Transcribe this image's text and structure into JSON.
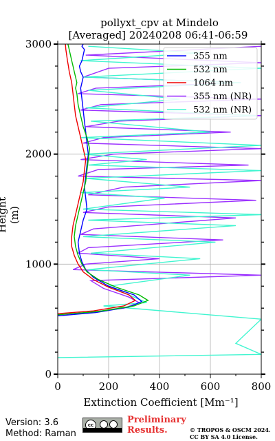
{
  "title_line1": "pollyxt_cpv at Mindelo",
  "title_line2": "[Averaged] 20240208 06:41-06:59",
  "version_text": "Version: 3.6",
  "method_text": "Method: Raman",
  "preliminary_line1": "Preliminary",
  "preliminary_line2": "Results.",
  "copyright_line1": "© TROPOS & OSCM 2024.",
  "copyright_line2": "CC BY SA 4.0 License.",
  "colors": {
    "355": "#0000ff",
    "532": "#00bb00",
    "1064": "#ee0000",
    "355nr": "#9b30ff",
    "532nr": "#40f5d0",
    "prelim": "#e63232"
  },
  "chart_data": {
    "type": "line",
    "xlabel": "Extinction Coefficient [Mm⁻¹]",
    "ylabel": "Height (m)",
    "xlim": [
      0,
      800
    ],
    "ylim": [
      0,
      3000
    ],
    "xticks": [
      "0",
      "200",
      "400",
      "600",
      "800"
    ],
    "yticks": [
      "0",
      "1000",
      "2000",
      "3000"
    ],
    "grid": true,
    "legend_position": "top-right",
    "series": [
      {
        "name": "355 nm",
        "color_key": "355",
        "x": [
          0,
          150,
          280,
          330,
          300,
          200,
          140,
          110,
          95,
          85,
          80,
          90,
          100,
          115,
          110,
          105,
          110,
          115,
          120,
          115,
          110,
          105,
          100,
          95,
          90,
          95,
          100,
          90,
          85,
          95,
          100,
          105,
          95,
          100
        ],
        "y": [
          530,
          560,
          610,
          660,
          720,
          800,
          880,
          950,
          1020,
          1100,
          1200,
          1300,
          1400,
          1500,
          1600,
          1700,
          1800,
          1900,
          2000,
          2100,
          2200,
          2300,
          2400,
          2500,
          2600,
          2650,
          2700,
          2750,
          2800,
          2850,
          2900,
          2950,
          2980,
          3000
        ]
      },
      {
        "name": "532 nm",
        "color_key": "532",
        "x": [
          0,
          160,
          300,
          355,
          320,
          230,
          160,
          115,
          95,
          80,
          70,
          65,
          70,
          80,
          90,
          100,
          110,
          115,
          120,
          125,
          115,
          100,
          90,
          80,
          75,
          70,
          75,
          70,
          65,
          60,
          55,
          50,
          45,
          40
        ],
        "y": [
          540,
          570,
          620,
          670,
          720,
          790,
          860,
          930,
          1000,
          1080,
          1160,
          1250,
          1350,
          1450,
          1550,
          1650,
          1750,
          1850,
          1950,
          2050,
          2150,
          2250,
          2350,
          2450,
          2550,
          2600,
          2650,
          2700,
          2750,
          2800,
          2850,
          2900,
          2950,
          3000
        ]
      },
      {
        "name": "1064 nm",
        "color_key": "1064",
        "x": [
          0,
          140,
          260,
          305,
          280,
          200,
          140,
          100,
          80,
          65,
          55,
          55,
          60,
          70,
          80,
          90,
          100,
          105,
          110,
          100,
          90,
          80,
          70,
          65,
          60,
          55,
          50,
          45,
          42,
          38,
          35,
          32,
          30
        ],
        "y": [
          550,
          575,
          620,
          670,
          720,
          790,
          860,
          930,
          1000,
          1080,
          1160,
          1250,
          1350,
          1450,
          1550,
          1650,
          1750,
          1850,
          1950,
          2050,
          2150,
          2250,
          2350,
          2450,
          2550,
          2650,
          2700,
          2750,
          2800,
          2850,
          2900,
          2950,
          3000
        ]
      },
      {
        "name": "355 nm (NR)",
        "color_key": "355nr",
        "x": [
          0,
          120,
          260,
          320,
          280,
          180,
          130,
          800,
          60,
          110,
          400,
          80,
          120,
          650,
          90,
          140,
          700,
          100,
          200,
          780,
          120,
          260,
          800,
          80,
          160,
          750,
          90,
          220,
          800,
          100,
          180,
          680,
          110,
          240,
          800,
          90,
          170,
          800,
          80,
          150,
          720,
          100,
          200,
          800,
          110,
          800
        ],
        "y": [
          540,
          560,
          600,
          650,
          700,
          780,
          850,
          900,
          950,
          1000,
          1050,
          1100,
          1150,
          1220,
          1270,
          1320,
          1420,
          1470,
          1520,
          1580,
          1630,
          1700,
          1760,
          1800,
          1860,
          1900,
          1950,
          2000,
          2050,
          2100,
          2150,
          2200,
          2250,
          2300,
          2350,
          2400,
          2450,
          2500,
          2550,
          2600,
          2650,
          2700,
          2780,
          2830,
          2900,
          2980
        ]
      },
      {
        "name": "532 nm (NR)",
        "color_key": "532nr",
        "x": [
          0,
          800,
          700,
          800,
          180,
          350,
          300,
          200,
          520,
          120,
          560,
          130,
          620,
          100,
          700,
          120,
          800,
          100,
          420,
          90,
          520,
          110,
          800,
          120,
          350,
          100,
          800,
          90,
          600,
          130,
          780,
          110,
          480,
          120,
          720,
          100,
          800,
          90,
          560,
          120
        ],
        "y": [
          150,
          180,
          280,
          500,
          620,
          650,
          700,
          800,
          900,
          950,
          1050,
          1100,
          1200,
          1250,
          1350,
          1400,
          1450,
          1500,
          1600,
          1650,
          1700,
          1780,
          1850,
          1900,
          1950,
          2000,
          2080,
          2150,
          2200,
          2300,
          2350,
          2420,
          2500,
          2580,
          2650,
          2700,
          2780,
          2850,
          2920,
          2980
        ]
      }
    ]
  }
}
